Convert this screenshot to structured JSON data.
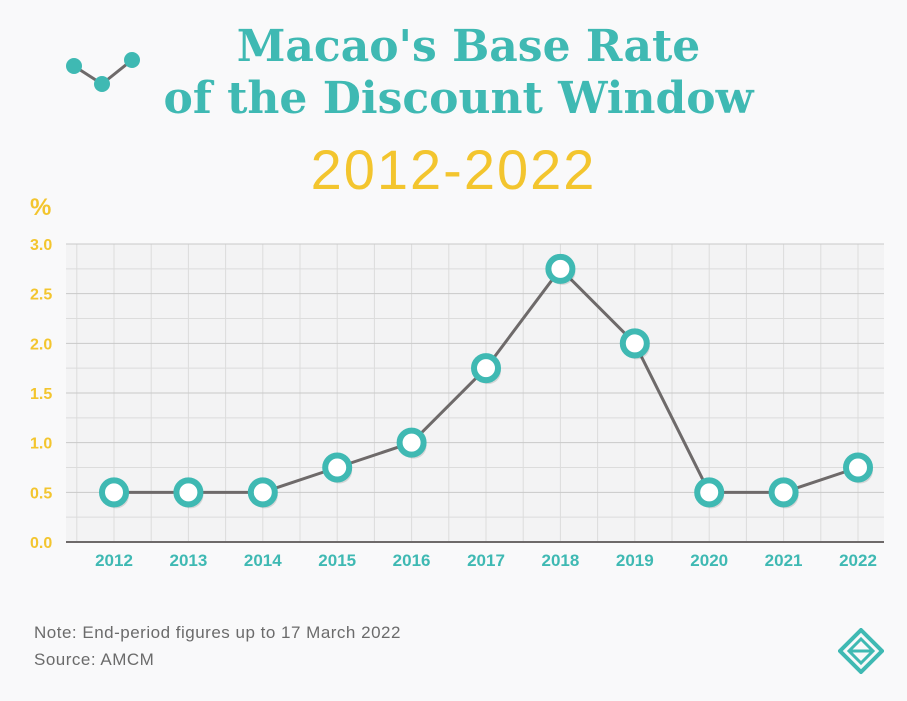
{
  "chart_data": {
    "type": "line",
    "title": "Macao's Base Rate of the Discount Window",
    "title_line1": "Macao's Base Rate",
    "title_line2": "of the Discount Window",
    "subtitle": "2012-2022",
    "ylabel": "%",
    "xlabel": "",
    "categories": [
      "2012",
      "2013",
      "2014",
      "2015",
      "2016",
      "2017",
      "2018",
      "2019",
      "2020",
      "2021",
      "2022"
    ],
    "series": [
      {
        "name": "Base Rate",
        "values": [
          0.5,
          0.5,
          0.5,
          0.75,
          1.0,
          1.75,
          2.75,
          2.0,
          0.5,
          0.5,
          0.75
        ]
      }
    ],
    "ylim": [
      0,
      3.0
    ],
    "yticks": [
      "0.0",
      "0.5",
      "1.0",
      "1.5",
      "2.0",
      "2.5",
      "3.0"
    ],
    "grid": true
  },
  "footer": {
    "note": "Note: End-period figures up to 17 March 2022",
    "source": "Source: AMCM"
  },
  "icons": {
    "decoration": "line-chart-icon",
    "logo": "amcm-logo-icon"
  },
  "colors": {
    "title": "#3fb9b3",
    "subtitle": "#f3c52e",
    "ytick": "#f3c52e",
    "xtick": "#3fb9b3",
    "line": "#6e6a6a",
    "marker": "#3fb9b3",
    "grid": "#dcdcdc"
  }
}
